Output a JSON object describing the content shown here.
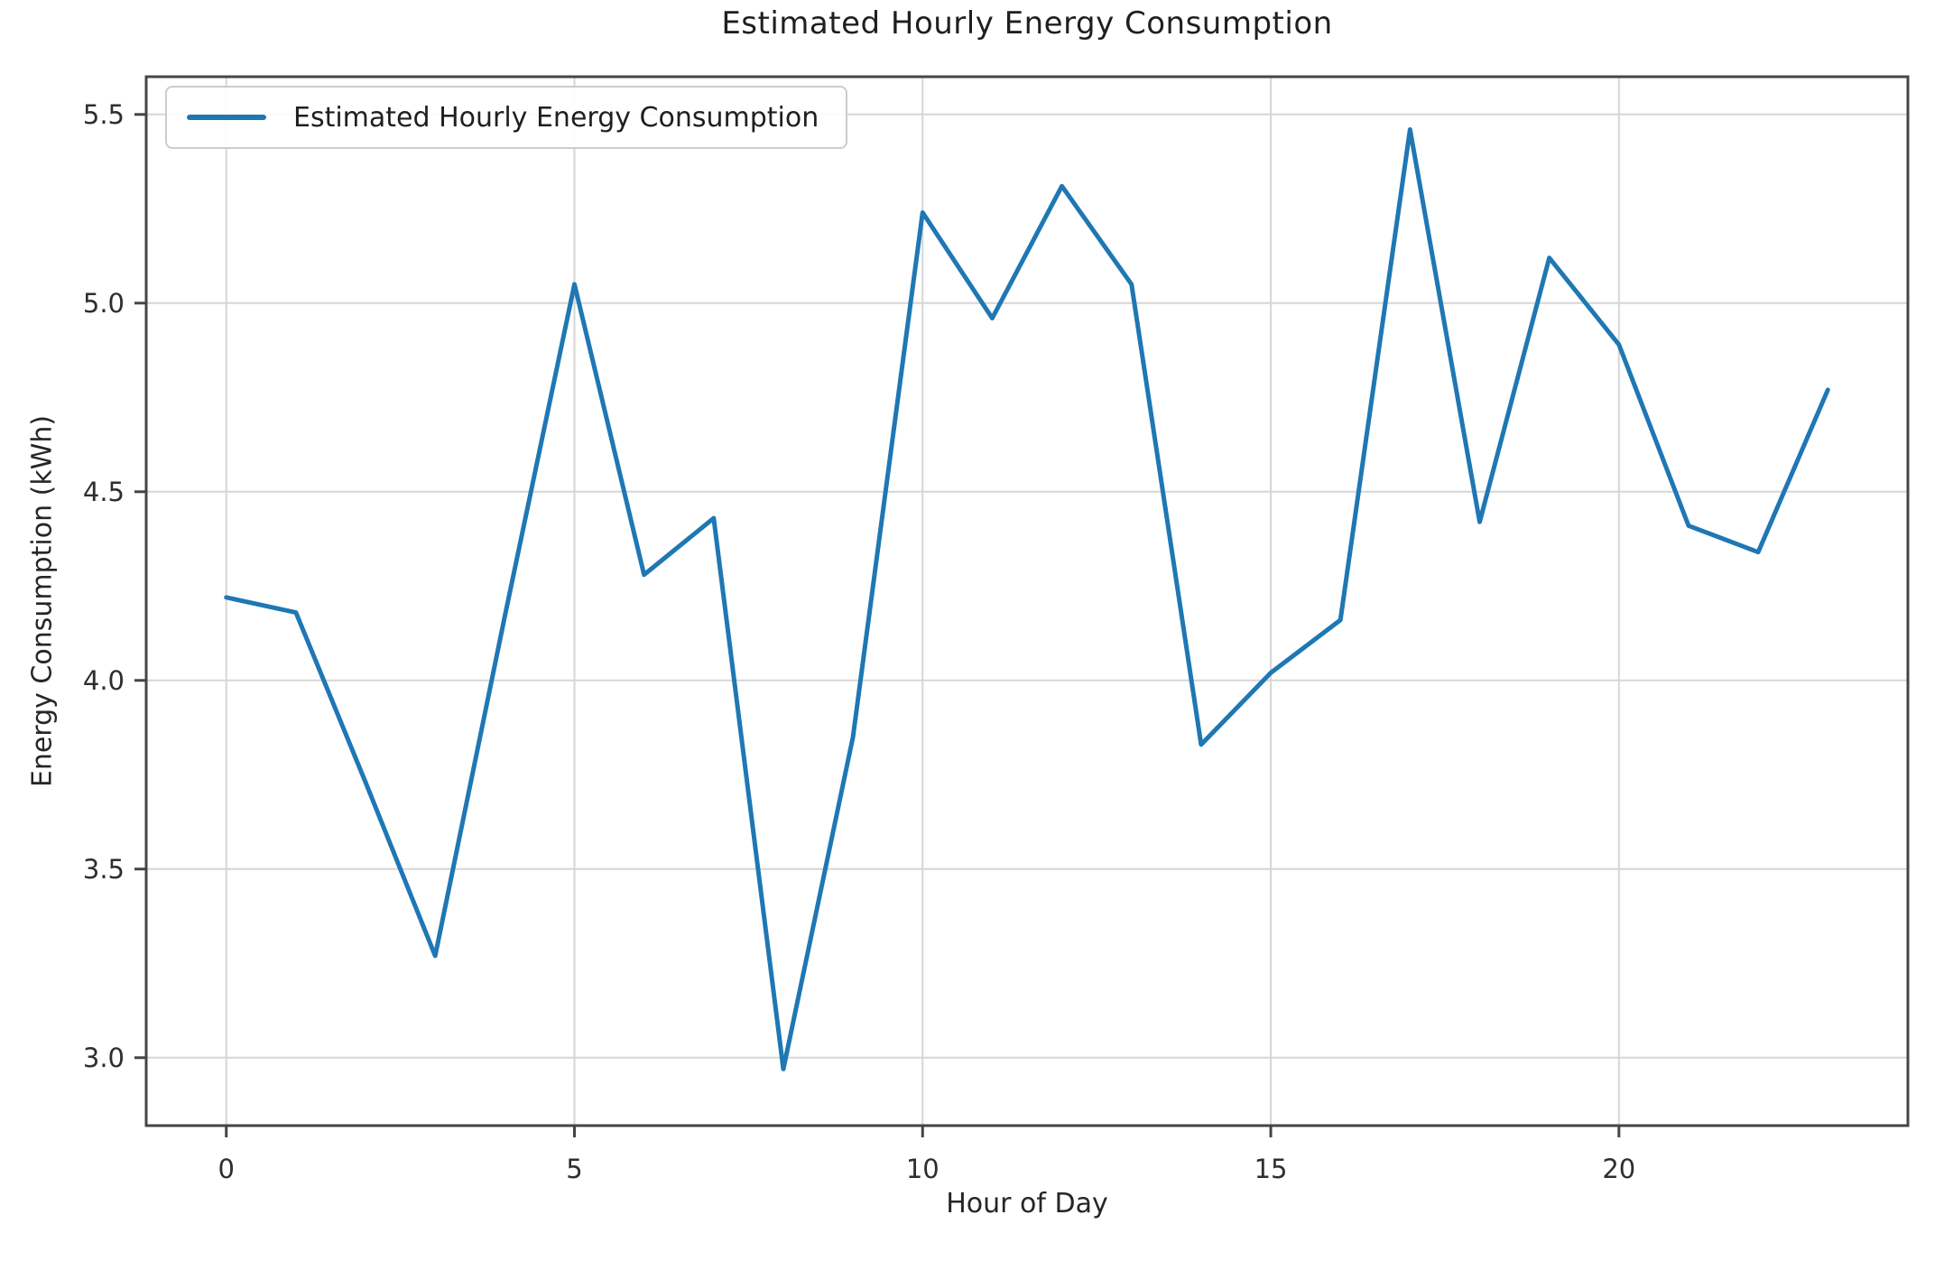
{
  "figure": {
    "background": "#ffffff"
  },
  "chart_data": {
    "type": "line",
    "title": "Estimated Hourly Energy Consumption",
    "xlabel": "Hour of Day",
    "ylabel": "Energy Consumption (kWh)",
    "legend": {
      "label": "Estimated Hourly Energy Consumption",
      "position": "upper-left"
    },
    "series": [
      {
        "name": "Estimated Hourly Energy Consumption",
        "x": [
          0,
          1,
          2,
          3,
          4,
          5,
          6,
          7,
          8,
          9,
          10,
          11,
          12,
          13,
          14,
          15,
          16,
          17,
          18,
          19,
          20,
          21,
          22,
          23
        ],
        "values": [
          4.22,
          4.18,
          3.73,
          3.27,
          4.17,
          5.05,
          4.28,
          4.43,
          2.97,
          3.85,
          5.24,
          4.96,
          5.31,
          5.05,
          3.83,
          4.02,
          4.16,
          5.46,
          4.42,
          5.12,
          4.89,
          4.41,
          4.34,
          4.77
        ]
      }
    ],
    "xlim": [
      -1.15,
      24.15
    ],
    "ylim": [
      2.82,
      5.6
    ],
    "xticks": [
      0,
      5,
      10,
      15,
      20
    ],
    "yticks": [
      3.0,
      3.5,
      4.0,
      4.5,
      5.0,
      5.5
    ],
    "grid": true,
    "colors": {
      "line": "#1f77b4",
      "grid": "#d6d6d6",
      "spine": "#454545",
      "tick_text": "#2e2e2e"
    }
  }
}
